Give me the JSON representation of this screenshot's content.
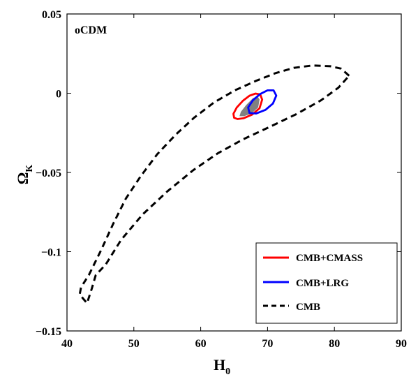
{
  "chart_data": {
    "type": "contour",
    "annotation": "oCDM",
    "xlabel": "H",
    "xlabel_sub": "0",
    "ylabel": "Ω",
    "ylabel_sub": "K",
    "xlim": [
      40,
      90
    ],
    "ylim": [
      -0.15,
      0.05
    ],
    "x_ticks": [
      40,
      50,
      60,
      70,
      80,
      90
    ],
    "x_tick_labels": [
      "40",
      "50",
      "60",
      "70",
      "80",
      "90"
    ],
    "y_ticks": [
      -0.15,
      -0.1,
      -0.05,
      0,
      0.05
    ],
    "y_tick_labels": [
      "−0.15",
      "−0.1",
      "−0.05",
      "0",
      "0.05"
    ],
    "grid": false,
    "legend_position": "bottom-right",
    "series": [
      {
        "name": "CMB+CMASS",
        "color": "#ff0000",
        "line_style": "solid",
        "inner_fill": "#808080",
        "outer": [
          [
            65.0,
            -0.0155
          ],
          [
            64.9,
            -0.013
          ],
          [
            65.4,
            -0.009
          ],
          [
            66.3,
            -0.0048
          ],
          [
            67.3,
            -0.0016
          ],
          [
            68.2,
            -0.0002
          ],
          [
            68.9,
            -0.0008
          ],
          [
            69.2,
            -0.004
          ],
          [
            68.8,
            -0.0095
          ],
          [
            67.7,
            -0.0135
          ],
          [
            66.4,
            -0.0158
          ],
          [
            65.5,
            -0.0163
          ]
        ],
        "inner": [
          [
            65.8,
            -0.0145
          ],
          [
            66.0,
            -0.0118
          ],
          [
            66.8,
            -0.0075
          ],
          [
            67.8,
            -0.0032
          ],
          [
            68.5,
            -0.0018
          ],
          [
            68.8,
            -0.004
          ],
          [
            68.6,
            -0.009
          ],
          [
            67.6,
            -0.0128
          ],
          [
            66.5,
            -0.0145
          ]
        ]
      },
      {
        "name": "CMB+LRG",
        "color": "#0000ff",
        "line_style": "solid",
        "outer": [
          [
            67.3,
            -0.0125
          ],
          [
            67.1,
            -0.009
          ],
          [
            67.8,
            -0.0045
          ],
          [
            68.9,
            -0.0005
          ],
          [
            70.0,
            0.0018
          ],
          [
            70.9,
            0.0018
          ],
          [
            71.3,
            -0.0015
          ],
          [
            70.8,
            -0.0065
          ],
          [
            69.7,
            -0.0105
          ],
          [
            68.3,
            -0.0128
          ]
        ]
      },
      {
        "name": "CMB",
        "color": "#000000",
        "line_style": "dashed",
        "outer": [
          [
            82.2,
            0.011
          ],
          [
            81.0,
            0.0155
          ],
          [
            79.4,
            0.017
          ],
          [
            76.7,
            0.0175
          ],
          [
            73.9,
            0.016
          ],
          [
            71.1,
            0.0125
          ],
          [
            68.4,
            0.008
          ],
          [
            65.2,
            0.002
          ],
          [
            62.0,
            -0.0058
          ],
          [
            59.0,
            -0.0155
          ],
          [
            56.3,
            -0.026
          ],
          [
            53.5,
            -0.0385
          ],
          [
            51.0,
            -0.0525
          ],
          [
            48.8,
            -0.0665
          ],
          [
            46.9,
            -0.0825
          ],
          [
            45.1,
            -0.099
          ],
          [
            43.3,
            -0.1145
          ],
          [
            42.1,
            -0.1225
          ],
          [
            41.9,
            -0.127
          ],
          [
            43.0,
            -0.1325
          ],
          [
            43.7,
            -0.1235
          ],
          [
            44.3,
            -0.1148
          ],
          [
            45.8,
            -0.108
          ],
          [
            48.1,
            -0.0925
          ],
          [
            51.3,
            -0.0765
          ],
          [
            55.0,
            -0.062
          ],
          [
            58.9,
            -0.0485
          ],
          [
            62.6,
            -0.0378
          ],
          [
            66.4,
            -0.029
          ],
          [
            70.2,
            -0.0215
          ],
          [
            74.3,
            -0.0132
          ],
          [
            78.0,
            -0.0045
          ],
          [
            80.6,
            0.0035
          ],
          [
            82.2,
            0.011
          ]
        ]
      }
    ]
  }
}
